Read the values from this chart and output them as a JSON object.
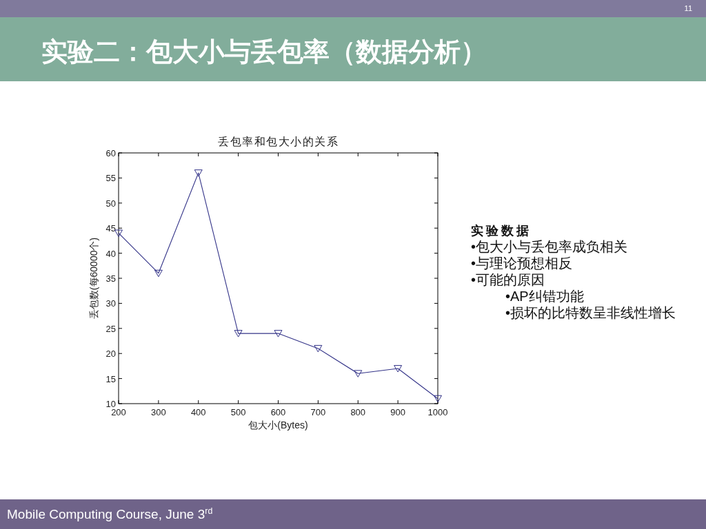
{
  "chart_data": [
    {
      "type": "line",
      "title": "丢包率和包大小的关系",
      "xlabel": "包大小(Bytes)",
      "ylabel": "丢包数(每60000个)",
      "x": [
        200,
        300,
        400,
        500,
        600,
        700,
        800,
        900,
        1000
      ],
      "values": [
        44,
        36,
        56,
        24,
        24,
        21,
        16,
        17,
        11
      ],
      "color": "#333388",
      "marker": "triangle",
      "line_style": "solid",
      "xlim": [
        200,
        1000
      ],
      "xticks": [
        200,
        300,
        400,
        500,
        600,
        700,
        800,
        900,
        1000
      ],
      "ylim": [
        10,
        60
      ],
      "yticks": [
        10,
        15,
        20,
        25,
        30,
        35,
        40,
        45,
        50,
        55,
        60
      ],
      "annotations": [
        "实验二：包大小与丢包率（数据分析）",
        "11",
        "Mobile Computing Course, June 3$^{rd}$"
      ]
    },
    {
      "type": "other",
      "title": "实验数据",
      "annotations": [
        "•包大小与丢包率成负相关",
        "•与理论预想相反",
        "•可能的原因",
        "•AP纠错功能",
        "•损坏的比特数呈非线性增长"
      ]
    }
  ]
}
